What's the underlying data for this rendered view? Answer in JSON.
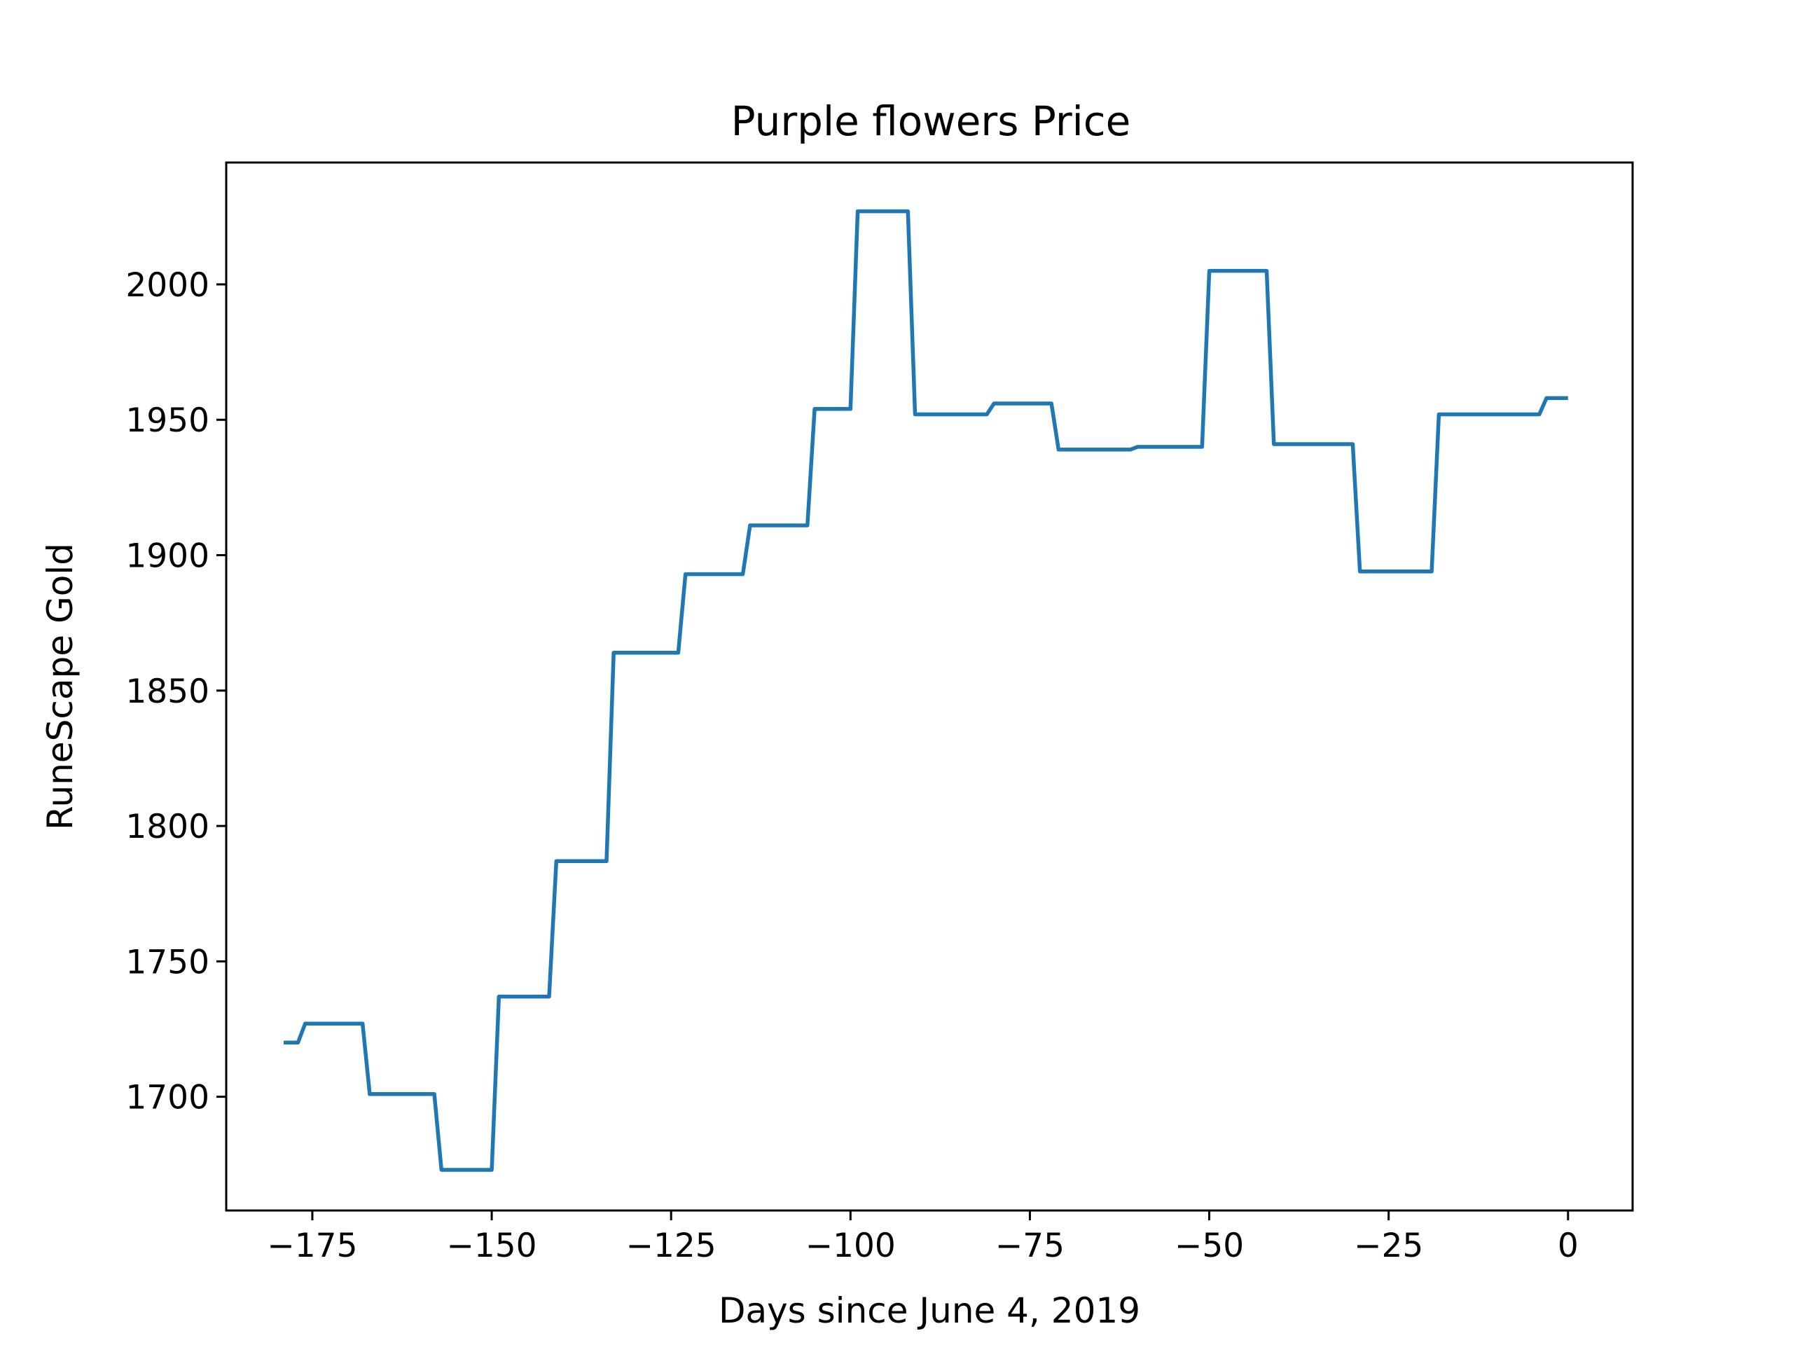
{
  "chart_data": {
    "type": "line",
    "title": "Purple flowers Price",
    "xlabel": "Days since June 4, 2019",
    "ylabel": "RuneScape Gold",
    "xlim": [
      -187,
      9
    ],
    "ylim": [
      1658,
      2045
    ],
    "xticks": [
      -175,
      -150,
      -125,
      -100,
      -75,
      -50,
      -25,
      0
    ],
    "xtick_labels": [
      "−175",
      "−150",
      "−125",
      "−100",
      "−75",
      "−50",
      "−25",
      "0"
    ],
    "yticks": [
      1700,
      1750,
      1800,
      1850,
      1900,
      1950,
      2000
    ],
    "ytick_labels": [
      "1700",
      "1750",
      "1800",
      "1850",
      "1900",
      "1950",
      "2000"
    ],
    "grid": false,
    "line_color": "#1f77b4",
    "series": [
      {
        "x": [
          -179,
          -178,
          -177,
          -176,
          -168,
          -167,
          -158,
          -157,
          -151,
          -150,
          -149,
          -148,
          -142,
          -141,
          -134,
          -133,
          -124,
          -123,
          -115,
          -114,
          -109,
          -108,
          -106,
          -105,
          -100,
          -99,
          -92,
          -91,
          -83,
          -82,
          -81,
          -80,
          -72,
          -71,
          -63,
          -62,
          -61,
          -60,
          -53,
          -52,
          -51,
          -50,
          -42,
          -41,
          -30,
          -29,
          -19,
          -18,
          -7,
          -6,
          -4,
          -3,
          0
        ],
        "y": [
          1720,
          1720,
          1720,
          1727,
          1727,
          1701,
          1701,
          1673,
          1673,
          1673,
          1737,
          1737,
          1737,
          1787,
          1787,
          1864,
          1864,
          1893,
          1893,
          1911,
          1911,
          1911,
          1911,
          1954,
          1954,
          2027,
          2027,
          1952,
          1952,
          1952,
          1952,
          1956,
          1956,
          1939,
          1939,
          1939,
          1939,
          1940,
          1940,
          1940,
          1940,
          2005,
          2005,
          1941,
          1941,
          1894,
          1894,
          1952,
          1952,
          1952,
          1952,
          1958,
          1958
        ]
      }
    ]
  }
}
